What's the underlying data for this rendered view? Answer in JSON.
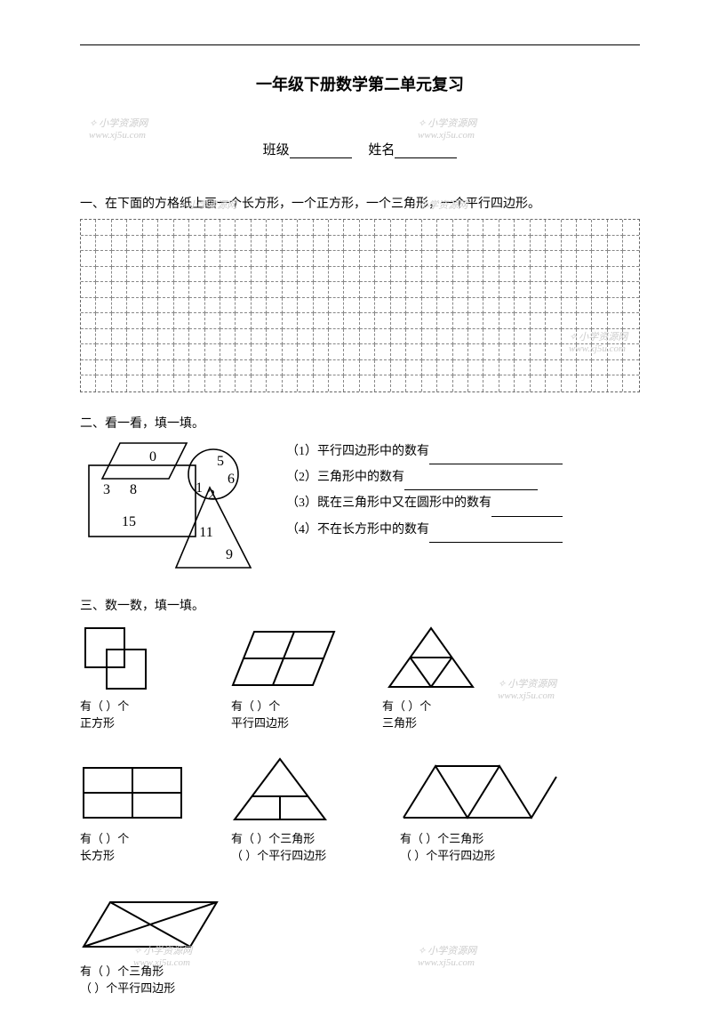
{
  "title": "一年级下册数学第二单元复习",
  "fields": {
    "class_label": "班级",
    "name_label": "姓名"
  },
  "watermark": {
    "text": "小学资源网",
    "url": "www.xj5u.com"
  },
  "grid": {
    "rows": 11,
    "cols": 36
  },
  "q1": {
    "heading": "一、在下面的方格纸上画一个长方形，一个正方形，一个三角形，一个平行四边形。"
  },
  "q2": {
    "heading": "二、看一看，填一填。",
    "diagram_numbers": [
      "0",
      "5",
      "3",
      "8",
      "1",
      "2",
      "6",
      "15",
      "11",
      "9"
    ],
    "items": [
      "（1）平行四边形中的数有",
      "（2）三角形中的数有",
      "（3）既在三角形中又在圆形中的数有",
      "（4）不在长方形中的数有"
    ]
  },
  "q3": {
    "heading": "三、数一数，填一填。",
    "row1": [
      {
        "line1": "有（   ）个",
        "line2": "正方形"
      },
      {
        "line1": "有（   ）个",
        "line2": "平行四边形"
      },
      {
        "line1": "有（   ）个",
        "line2": "三角形"
      },
      {
        "line1": "有（   ）个",
        "line2": "长方形"
      }
    ],
    "row2": [
      {
        "line1": "有（   ）个三角形",
        "line2": "（   ）个平行四边形"
      },
      {
        "line1": "有（   ）个三角形",
        "line2": "（   ）个平行四边形"
      },
      {
        "line1": "有（   ）个三角形",
        "line2": "（   ）个平行四边形"
      }
    ]
  },
  "colors": {
    "line": "#000000",
    "dash": "#888888",
    "watermark": "#cccccc",
    "bg": "#ffffff"
  }
}
